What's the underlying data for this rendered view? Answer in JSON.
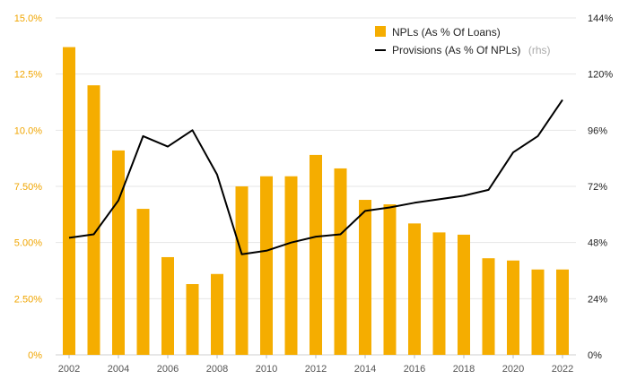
{
  "chart_data": {
    "type": "bar",
    "years": [
      "2002",
      "2003",
      "2004",
      "2005",
      "2006",
      "2007",
      "2008",
      "2009",
      "2010",
      "2011",
      "2012",
      "2013",
      "2014",
      "2015",
      "2016",
      "2017",
      "2018",
      "2019",
      "2020",
      "2021",
      "2022"
    ],
    "x_tick_labels": [
      "2002",
      "2004",
      "2006",
      "2008",
      "2010",
      "2012",
      "2014",
      "2016",
      "2018",
      "2020",
      "2022"
    ],
    "left_axis": {
      "ylim": [
        0,
        15
      ],
      "tick_labels": [
        "0%",
        "2.50%",
        "5.00%",
        "7.50%",
        "10.0%",
        "12.5%",
        "15.0%"
      ]
    },
    "right_axis": {
      "ylim": [
        0,
        144
      ],
      "tick_labels": [
        "0%",
        "24%",
        "48%",
        "72%",
        "96%",
        "120%",
        "144%"
      ]
    },
    "series": [
      {
        "name": "NPLs (As % Of Loans)",
        "type": "bar",
        "axis": "left",
        "color": "#f5ad00",
        "values": [
          13.7,
          12.0,
          9.1,
          6.5,
          4.35,
          3.15,
          3.6,
          7.5,
          7.95,
          7.95,
          8.9,
          8.3,
          6.9,
          6.7,
          5.85,
          5.45,
          5.35,
          4.3,
          4.2,
          3.8,
          3.8
        ]
      },
      {
        "name": "Provisions (As % Of NPLs)",
        "name_suffix": "(rhs)",
        "type": "line",
        "axis": "right",
        "color": "#000000",
        "values": [
          50,
          51.5,
          66,
          93.5,
          89,
          96,
          77,
          43,
          44.5,
          48,
          50.5,
          51.5,
          61.5,
          63,
          65,
          66.5,
          68,
          70.5,
          86.5,
          93.5,
          109
        ]
      }
    ],
    "grid": true,
    "legend_position": "top-right"
  }
}
